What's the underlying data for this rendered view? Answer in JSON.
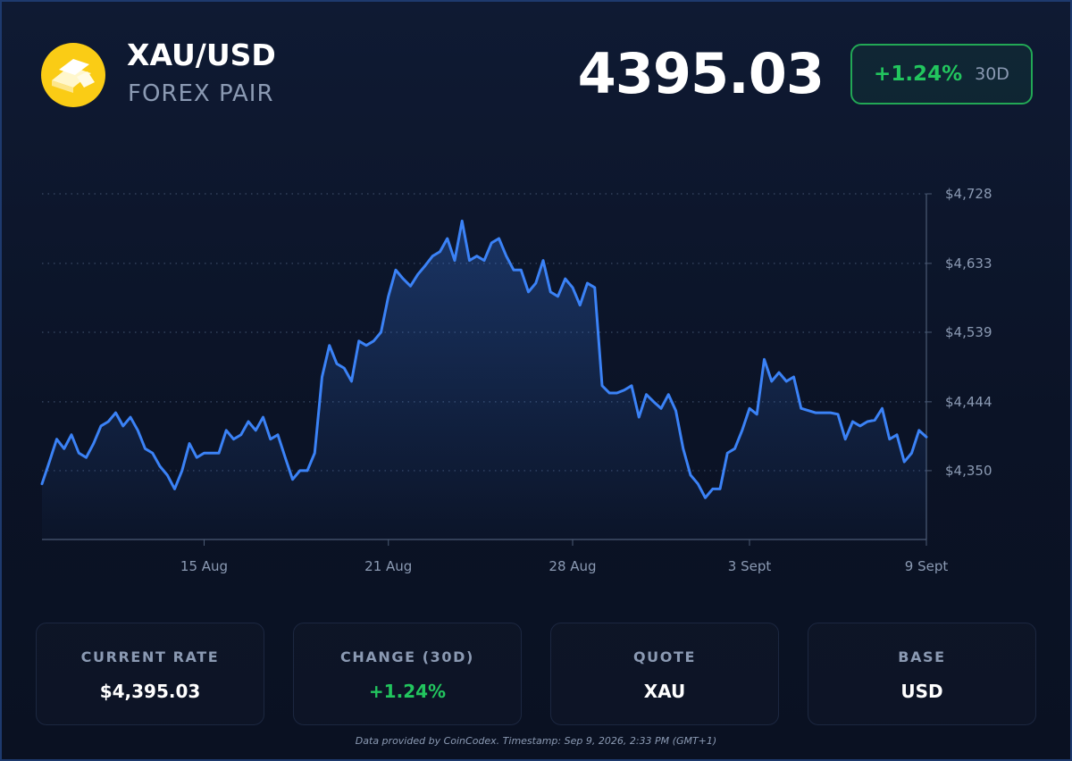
{
  "header": {
    "title": "XAU/USD",
    "subtitle": "FOREX PAIR",
    "price": "4395.03",
    "change": "+1.24%",
    "period": "30D"
  },
  "chart_data": {
    "type": "line",
    "color": "#3b82f6",
    "grid": true,
    "categories": [
      null,
      null,
      null,
      null,
      null,
      null,
      null,
      null,
      null,
      null,
      null,
      null,
      null,
      null,
      null,
      null,
      null,
      null,
      null,
      null,
      null,
      null,
      "15 Aug",
      null,
      null,
      null,
      null,
      null,
      null,
      null,
      null,
      null,
      null,
      null,
      null,
      null,
      null,
      null,
      null,
      null,
      null,
      null,
      null,
      null,
      null,
      null,
      null,
      "21 Aug",
      null,
      null,
      null,
      null,
      null,
      null,
      null,
      null,
      null,
      null,
      null,
      null,
      null,
      null,
      null,
      null,
      null,
      null,
      null,
      null,
      null,
      null,
      null,
      null,
      "28 Aug",
      null,
      null,
      null,
      null,
      null,
      null,
      null,
      null,
      null,
      null,
      null,
      null,
      null,
      null,
      null,
      null,
      null,
      null,
      null,
      null,
      null,
      null,
      null,
      "3 Sept",
      null,
      null,
      null,
      null,
      null,
      null,
      null,
      null,
      null,
      null,
      null,
      null,
      null,
      null,
      null,
      null,
      null,
      null,
      null,
      null,
      null,
      null,
      null,
      "9 Sept"
    ],
    "values": [
      4332,
      4362,
      4393,
      4380,
      4399,
      4374,
      4368,
      4387,
      4411,
      4417,
      4429,
      4411,
      4423,
      4405,
      4380,
      4374,
      4356,
      4344,
      4325,
      4350,
      4387,
      4368,
      4374,
      4374,
      4374,
      4405,
      4393,
      4399,
      4417,
      4405,
      4423,
      4393,
      4399,
      4368,
      4338,
      4350,
      4350,
      4374,
      4478,
      4521,
      4496,
      4490,
      4472,
      4527,
      4521,
      4527,
      4539,
      4588,
      4624,
      4612,
      4602,
      4618,
      4630,
      4643,
      4649,
      4667,
      4637,
      4691,
      4637,
      4643,
      4637,
      4661,
      4667,
      4643,
      4624,
      4624,
      4594,
      4606,
      4637,
      4594,
      4588,
      4612,
      4600,
      4576,
      4606,
      4600,
      4466,
      4456,
      4456,
      4460,
      4466,
      4423,
      4454,
      4444,
      4435,
      4454,
      4432,
      4380,
      4344,
      4332,
      4313,
      4325,
      4325,
      4374,
      4380,
      4405,
      4435,
      4427,
      4502,
      4472,
      4484,
      4472,
      4478,
      4435,
      4432,
      4429,
      4429,
      4429,
      4427,
      4393,
      4417,
      4411,
      4417,
      4419,
      4435,
      4393,
      4399,
      4362,
      4374,
      4405,
      4396
    ],
    "ylim": [
      4256,
      4728
    ],
    "yticks": [
      {
        "value": 4728,
        "label": "$4,728"
      },
      {
        "value": 4633,
        "label": "$4,633"
      },
      {
        "value": 4539,
        "label": "$4,539"
      },
      {
        "value": 4444,
        "label": "$4,444"
      },
      {
        "value": 4350,
        "label": "$4,350"
      }
    ]
  },
  "stats": [
    {
      "label": "CURRENT RATE",
      "value": "$4,395.03"
    },
    {
      "label": "CHANGE (30D)",
      "value": "+1.24%"
    },
    {
      "label": "QUOTE",
      "value": "XAU"
    },
    {
      "label": "BASE",
      "value": "USD"
    }
  ],
  "footer": "Data provided by CoinCodex. Timestamp: Sep 9, 2026, 2:33 PM (GMT+1)"
}
